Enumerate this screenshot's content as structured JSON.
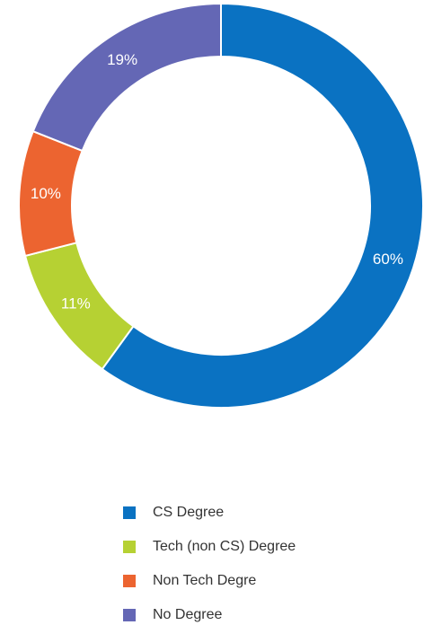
{
  "chart_data": {
    "type": "donut",
    "categories": [
      "CS Degree",
      "Tech (non CS) Degree",
      "Non Tech Degre",
      "No Degree"
    ],
    "values": [
      60,
      11,
      10,
      19
    ],
    "value_labels": [
      "60%",
      "11%",
      "10%",
      "19%"
    ],
    "colors": [
      "#0a72c2",
      "#b6d133",
      "#ec6430",
      "#6467b5"
    ],
    "legend": "bottom"
  }
}
